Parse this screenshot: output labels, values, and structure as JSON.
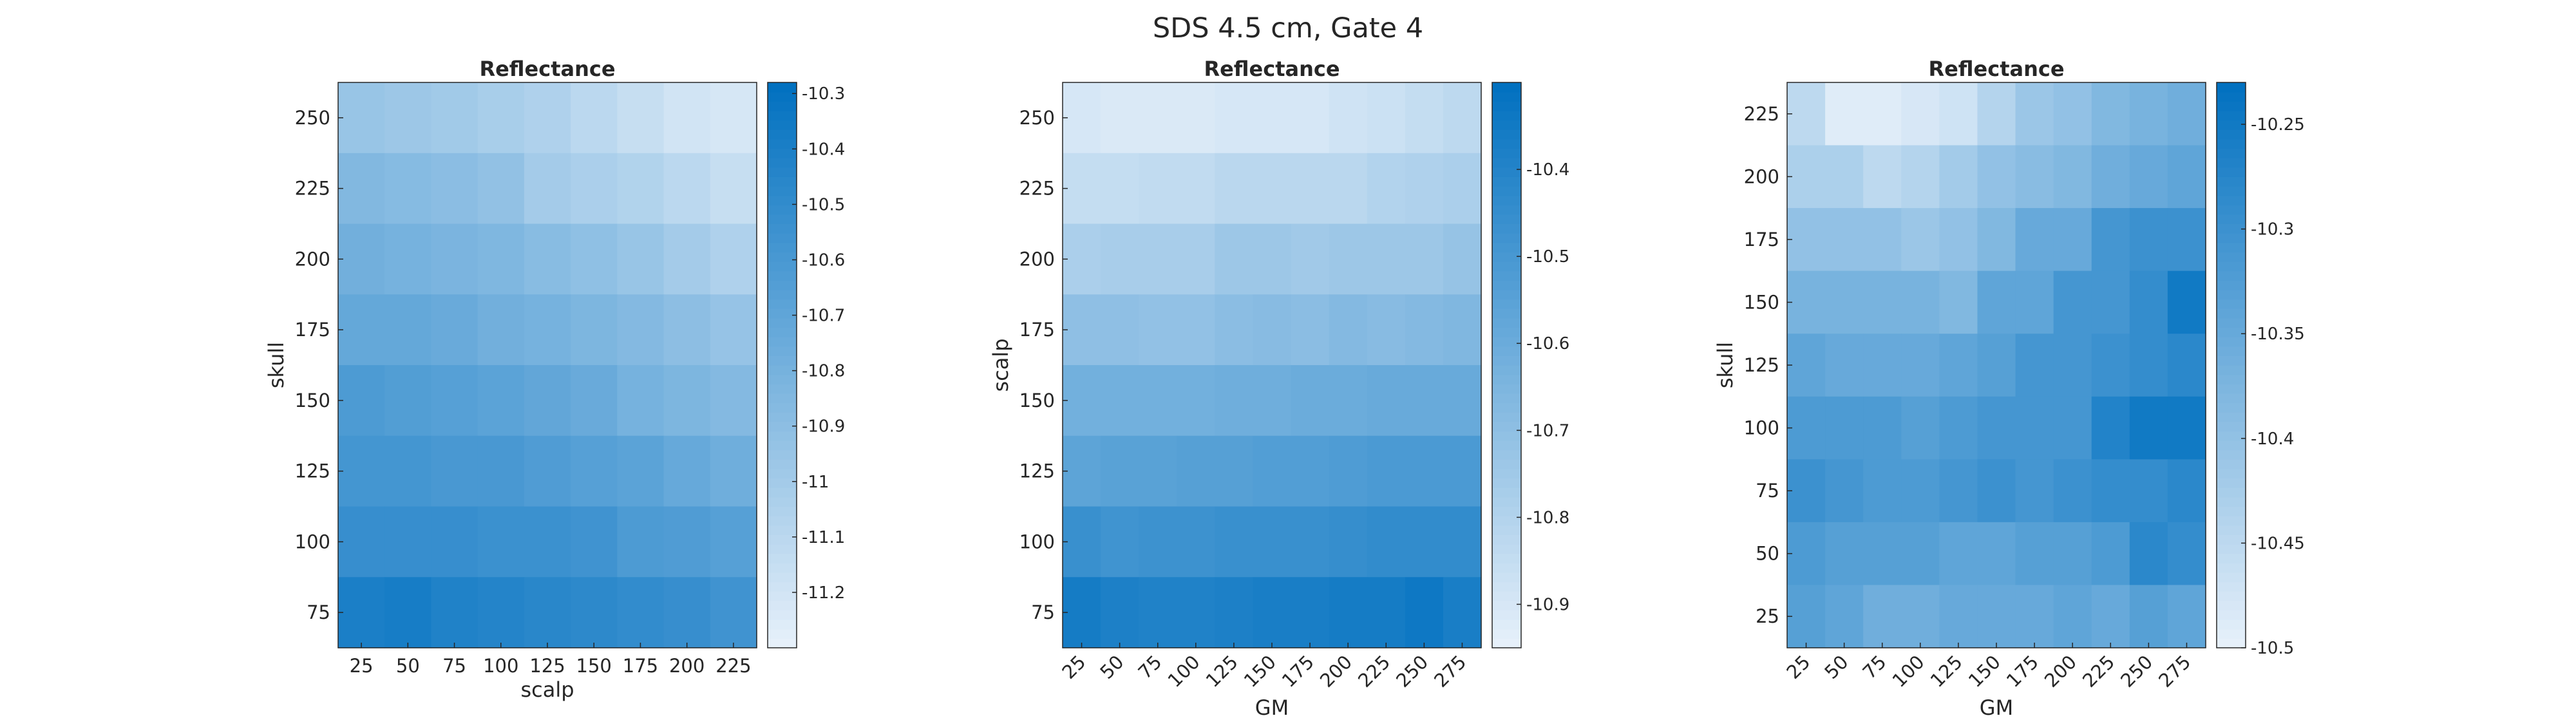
{
  "figure": {
    "suptitle": "SDS 4.5 cm, Gate 4"
  },
  "colormap": {
    "light": "#e8f1fa",
    "dark": "#0070c0"
  },
  "chart_data": [
    {
      "type": "heatmap",
      "title": "Reflectance",
      "xlabel": "scalp",
      "ylabel": "skull",
      "x_ticks": [
        "25",
        "50",
        "75",
        "100",
        "125",
        "150",
        "175",
        "200",
        "225"
      ],
      "y_ticks": [
        "250",
        "225",
        "200",
        "175",
        "150",
        "125",
        "100",
        "75"
      ],
      "x_tick_rotation": 0,
      "clim": [
        -11.3,
        -10.28
      ],
      "colorbar_ticks": [
        "-10.3",
        "-10.4",
        "-10.5",
        "-10.6",
        "-10.7",
        "-10.8",
        "-10.9",
        "-11",
        "-11.1",
        "-11.2"
      ],
      "colorbar_tick_values": [
        -10.3,
        -10.4,
        -10.5,
        -10.6,
        -10.7,
        -10.8,
        -10.9,
        -11.0,
        -11.1,
        -11.2
      ],
      "values": [
        [
          -10.95,
          -10.97,
          -10.99,
          -11.02,
          -11.05,
          -11.1,
          -11.15,
          -11.2,
          -11.22
        ],
        [
          -10.85,
          -10.87,
          -10.89,
          -10.92,
          -11.0,
          -11.03,
          -11.06,
          -11.1,
          -11.15
        ],
        [
          -10.78,
          -10.8,
          -10.82,
          -10.84,
          -10.88,
          -10.91,
          -10.95,
          -11.0,
          -11.05
        ],
        [
          -10.72,
          -10.72,
          -10.74,
          -10.78,
          -10.8,
          -10.83,
          -10.86,
          -10.9,
          -10.94
        ],
        [
          -10.62,
          -10.64,
          -10.66,
          -10.68,
          -10.71,
          -10.74,
          -10.8,
          -10.83,
          -10.86
        ],
        [
          -10.58,
          -10.58,
          -10.6,
          -10.6,
          -10.63,
          -10.66,
          -10.68,
          -10.73,
          -10.77
        ],
        [
          -10.52,
          -10.52,
          -10.52,
          -10.54,
          -10.54,
          -10.56,
          -10.62,
          -10.63,
          -10.66
        ],
        [
          -10.4,
          -10.38,
          -10.42,
          -10.44,
          -10.46,
          -10.48,
          -10.5,
          -10.52,
          -10.56
        ]
      ]
    },
    {
      "type": "heatmap",
      "title": "Reflectance",
      "xlabel": "GM",
      "ylabel": "scalp",
      "x_ticks": [
        "25",
        "50",
        "75",
        "100",
        "125",
        "150",
        "175",
        "200",
        "225",
        "250",
        "275"
      ],
      "y_ticks": [
        "250",
        "225",
        "200",
        "175",
        "150",
        "125",
        "100",
        "75"
      ],
      "x_tick_rotation": -45,
      "clim": [
        -10.95,
        -10.3
      ],
      "colorbar_ticks": [
        "-10.4",
        "-10.5",
        "-10.6",
        "-10.7",
        "-10.8",
        "-10.9"
      ],
      "colorbar_tick_values": [
        -10.4,
        -10.5,
        -10.6,
        -10.7,
        -10.8,
        -10.9
      ],
      "values": [
        [
          -10.9,
          -10.91,
          -10.91,
          -10.91,
          -10.9,
          -10.9,
          -10.9,
          -10.88,
          -10.87,
          -10.85,
          -10.83
        ],
        [
          -10.85,
          -10.85,
          -10.84,
          -10.84,
          -10.82,
          -10.82,
          -10.82,
          -10.82,
          -10.8,
          -10.79,
          -10.78
        ],
        [
          -10.78,
          -10.77,
          -10.77,
          -10.77,
          -10.74,
          -10.74,
          -10.75,
          -10.74,
          -10.74,
          -10.74,
          -10.72
        ],
        [
          -10.7,
          -10.7,
          -10.71,
          -10.71,
          -10.69,
          -10.68,
          -10.69,
          -10.67,
          -10.68,
          -10.67,
          -10.66
        ],
        [
          -10.62,
          -10.62,
          -10.62,
          -10.62,
          -10.61,
          -10.61,
          -10.6,
          -10.6,
          -10.59,
          -10.59,
          -10.59
        ],
        [
          -10.56,
          -10.55,
          -10.55,
          -10.54,
          -10.54,
          -10.53,
          -10.53,
          -10.52,
          -10.51,
          -10.51,
          -10.51
        ],
        [
          -10.46,
          -10.48,
          -10.47,
          -10.47,
          -10.46,
          -10.46,
          -10.46,
          -10.45,
          -10.44,
          -10.44,
          -10.44
        ],
        [
          -10.36,
          -10.38,
          -10.39,
          -10.39,
          -10.38,
          -10.37,
          -10.37,
          -10.36,
          -10.36,
          -10.34,
          -10.37
        ]
      ]
    },
    {
      "type": "heatmap",
      "title": "Reflectance",
      "xlabel": "GM",
      "ylabel": "skull",
      "x_ticks": [
        "25",
        "50",
        "75",
        "100",
        "125",
        "150",
        "175",
        "200",
        "225",
        "250",
        "275"
      ],
      "y_ticks": [
        "225",
        "200",
        "175",
        "150",
        "125",
        "100",
        "75",
        "50",
        "25"
      ],
      "x_tick_rotation": -45,
      "clim": [
        -10.5,
        -10.23
      ],
      "colorbar_ticks": [
        "-10.25",
        "-10.3",
        "-10.35",
        "-10.4",
        "-10.45",
        "-10.5"
      ],
      "colorbar_tick_values": [
        -10.25,
        -10.3,
        -10.35,
        -10.4,
        -10.45,
        -10.5
      ],
      "values": [
        [
          -10.45,
          -10.49,
          -10.49,
          -10.48,
          -10.47,
          -10.44,
          -10.41,
          -10.4,
          -10.38,
          -10.37,
          -10.36
        ],
        [
          -10.43,
          -10.43,
          -10.45,
          -10.44,
          -10.42,
          -10.4,
          -10.39,
          -10.38,
          -10.36,
          -10.35,
          -10.34
        ],
        [
          -10.4,
          -10.4,
          -10.4,
          -10.41,
          -10.4,
          -10.38,
          -10.35,
          -10.35,
          -10.31,
          -10.3,
          -10.3
        ],
        [
          -10.37,
          -10.37,
          -10.37,
          -10.37,
          -10.38,
          -10.34,
          -10.34,
          -10.31,
          -10.31,
          -10.29,
          -10.25
        ],
        [
          -10.34,
          -10.35,
          -10.35,
          -10.35,
          -10.34,
          -10.33,
          -10.31,
          -10.31,
          -10.3,
          -10.29,
          -10.28
        ],
        [
          -10.32,
          -10.32,
          -10.32,
          -10.33,
          -10.32,
          -10.31,
          -10.31,
          -10.31,
          -10.27,
          -10.25,
          -10.25
        ],
        [
          -10.3,
          -10.31,
          -10.32,
          -10.32,
          -10.31,
          -10.3,
          -10.31,
          -10.3,
          -10.29,
          -10.29,
          -10.28
        ],
        [
          -10.32,
          -10.33,
          -10.33,
          -10.33,
          -10.34,
          -10.34,
          -10.33,
          -10.33,
          -10.32,
          -10.28,
          -10.29
        ],
        [
          -10.33,
          -10.34,
          -10.36,
          -10.36,
          -10.35,
          -10.35,
          -10.35,
          -10.34,
          -10.35,
          -10.33,
          -10.34
        ]
      ]
    }
  ]
}
